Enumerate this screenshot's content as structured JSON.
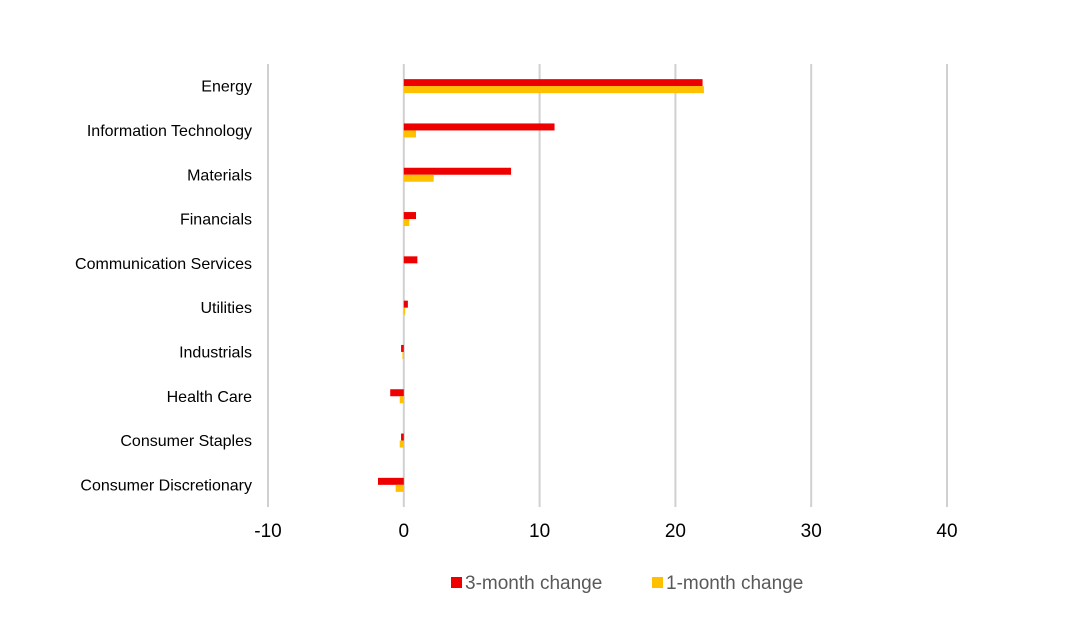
{
  "chart_data": {
    "type": "bar",
    "orientation": "horizontal",
    "title": "",
    "xlabel": "",
    "ylabel": "",
    "categories": [
      "Energy",
      "Information Technology",
      "Materials",
      "Financials",
      "Communication Services",
      "Utilities",
      "Industrials",
      "Health Care",
      "Consumer Staples",
      "Consumer Discretionary"
    ],
    "series": [
      {
        "name": "3-month change",
        "color": "#ee0000",
        "values": [
          22.0,
          11.1,
          7.9,
          0.9,
          1.0,
          0.3,
          -0.2,
          -1.0,
          -0.2,
          -1.9
        ]
      },
      {
        "name": "1-month change",
        "color": "#ffc000",
        "values": [
          22.1,
          0.9,
          2.2,
          0.4,
          0.0,
          0.1,
          -0.1,
          -0.3,
          -0.3,
          -0.6
        ]
      }
    ],
    "xlim": [
      -10,
      40
    ],
    "xticks": [
      -10,
      0,
      10,
      20,
      30,
      40
    ],
    "gridlines": "vertical",
    "legend": "bottom-center"
  }
}
